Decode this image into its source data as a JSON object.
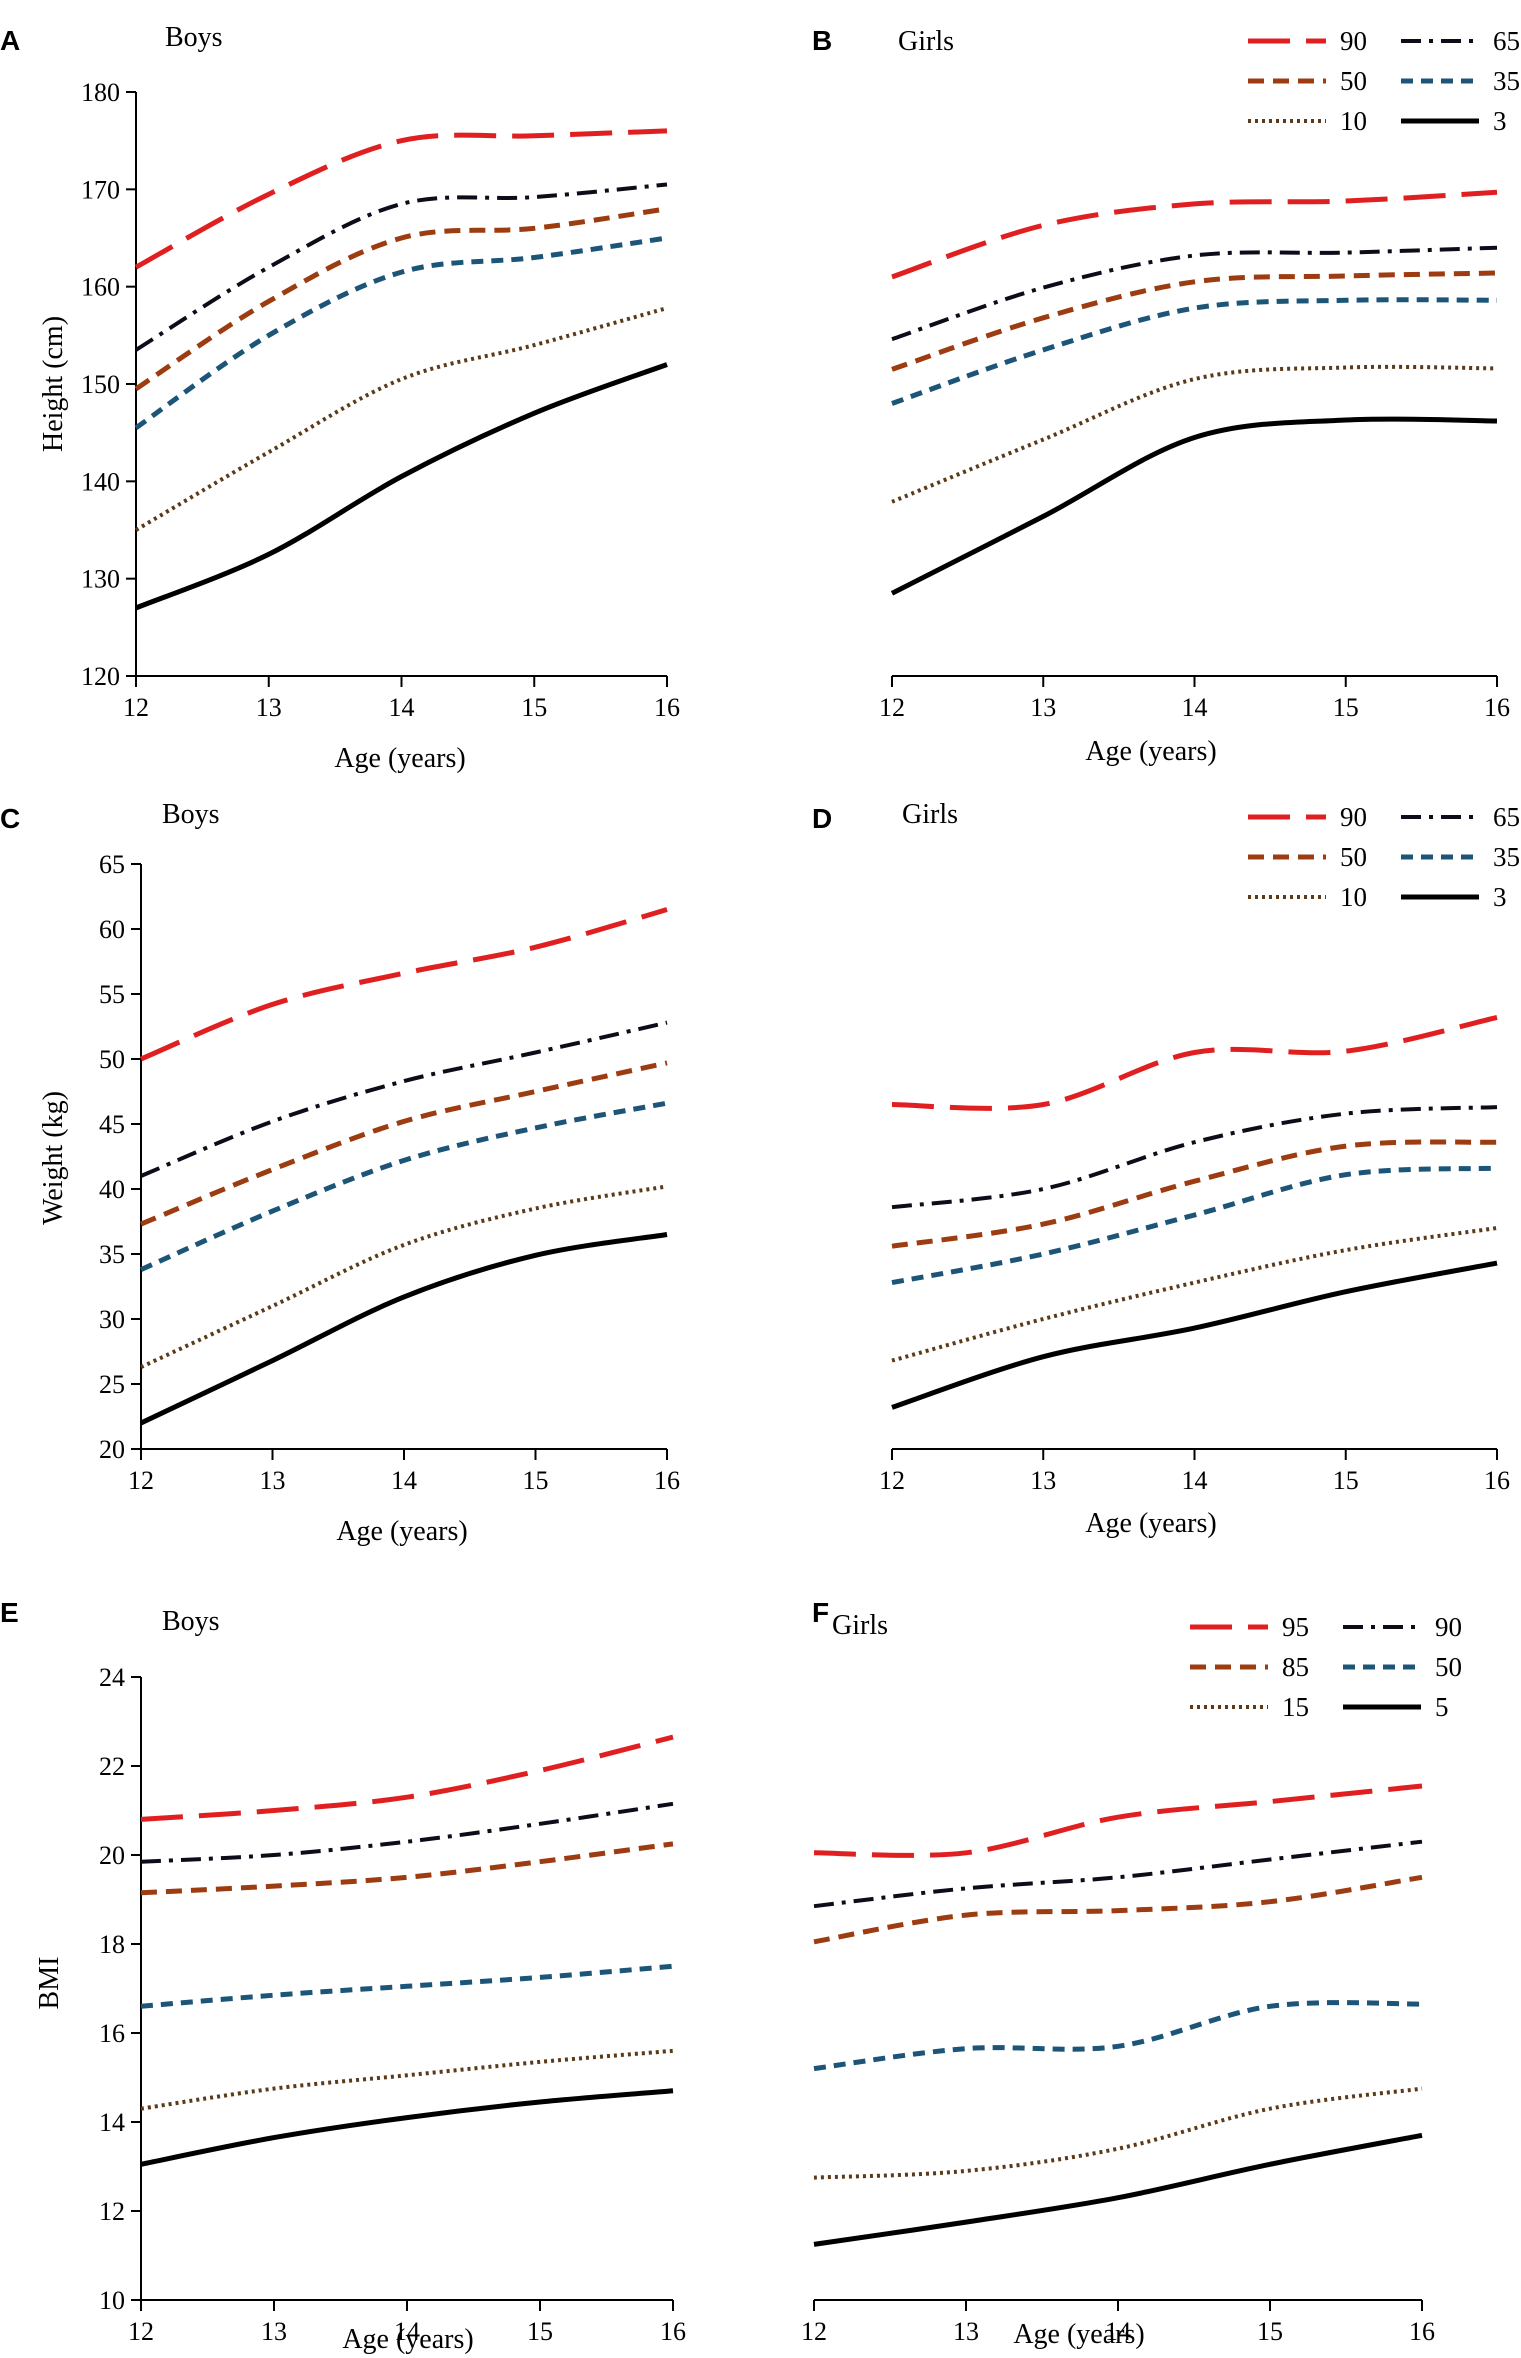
{
  "styles": {
    "90": {
      "color": "#e02020",
      "dash": "42 16",
      "width": 5
    },
    "65": {
      "color": "#0d0d1a",
      "dash": "20 8 4 8",
      "width": 4
    },
    "50": {
      "color": "#9c3c10",
      "dash": "16 9",
      "width": 5
    },
    "35": {
      "color": "#1c5578",
      "dash": "12 8",
      "width": 5
    },
    "10": {
      "color": "#5a3a18",
      "dash": "3 4",
      "width": 4
    },
    "3": {
      "color": "#000000",
      "dash": "",
      "width": 5
    },
    "95": {
      "color": "#e02020",
      "dash": "42 16",
      "width": 5
    },
    "90b": {
      "color": "#0d0d1a",
      "dash": "20 8 4 8",
      "width": 4
    },
    "85": {
      "color": "#9c3c10",
      "dash": "16 9",
      "width": 5
    },
    "50b": {
      "color": "#1c5578",
      "dash": "12 8",
      "width": 5
    },
    "15": {
      "color": "#5a3a18",
      "dash": "3 4",
      "width": 4
    },
    "5": {
      "color": "#000000",
      "dash": "",
      "width": 5
    }
  },
  "chart_data": [
    {
      "panel": "A",
      "type": "line",
      "title": "Boys",
      "xlabel": "Age (years)",
      "ylabel": "Height (cm)",
      "x": [
        12,
        13,
        14,
        15,
        16
      ],
      "xlim": [
        12,
        16
      ],
      "ylim": [
        120,
        180
      ],
      "yticks": [
        120,
        130,
        140,
        150,
        160,
        170,
        180
      ],
      "show_yaxis": true,
      "series": [
        {
          "name": "90",
          "style": "90",
          "values": [
            162,
            169.5,
            175,
            175.5,
            176
          ]
        },
        {
          "name": "65",
          "style": "65",
          "values": [
            153.5,
            162,
            168.5,
            169.2,
            170.5
          ]
        },
        {
          "name": "50",
          "style": "50",
          "values": [
            149.5,
            158.5,
            165,
            166,
            168
          ]
        },
        {
          "name": "35",
          "style": "35",
          "values": [
            145.5,
            155,
            161.5,
            163,
            165
          ]
        },
        {
          "name": "10",
          "style": "10",
          "values": [
            135,
            143,
            150.5,
            154,
            157.8
          ]
        },
        {
          "name": "3",
          "style": "3",
          "values": [
            127,
            132.5,
            140.5,
            147,
            152
          ]
        }
      ]
    },
    {
      "panel": "B",
      "type": "line",
      "title": "Girls",
      "xlabel": "Age (years)",
      "ylabel": "",
      "x": [
        12,
        13,
        14,
        15,
        16
      ],
      "xlim": [
        12,
        16
      ],
      "ylim": [
        120,
        180
      ],
      "yticks": [],
      "show_yaxis": false,
      "legend": {
        "position": "top-right",
        "rows": [
          [
            {
              "name": "90",
              "style": "90"
            },
            {
              "name": "65",
              "style": "65"
            }
          ],
          [
            {
              "name": "50",
              "style": "50"
            },
            {
              "name": "35",
              "style": "35"
            }
          ],
          [
            {
              "name": "10",
              "style": "10"
            },
            {
              "name": "3",
              "style": "3"
            }
          ]
        ]
      },
      "series": [
        {
          "name": "90",
          "style": "90",
          "values": [
            161,
            166.3,
            168.5,
            168.8,
            169.7
          ]
        },
        {
          "name": "65",
          "style": "65",
          "values": [
            154.6,
            159.9,
            163.2,
            163.5,
            164
          ]
        },
        {
          "name": "50",
          "style": "50",
          "values": [
            151.5,
            156.8,
            160.5,
            161.1,
            161.4
          ]
        },
        {
          "name": "35",
          "style": "35",
          "values": [
            148,
            153.5,
            157.8,
            158.6,
            158.6
          ]
        },
        {
          "name": "10",
          "style": "10",
          "values": [
            137.9,
            144.3,
            150.5,
            151.7,
            151.6
          ]
        },
        {
          "name": "3",
          "style": "3",
          "values": [
            128.5,
            136.4,
            144.5,
            146.3,
            146.2
          ]
        }
      ]
    },
    {
      "panel": "C",
      "type": "line",
      "title": "Boys",
      "xlabel": "Age (years)",
      "ylabel": "Weight (kg)",
      "x": [
        12,
        13,
        14,
        15,
        16
      ],
      "xlim": [
        12,
        16
      ],
      "ylim": [
        20,
        65
      ],
      "yticks": [
        20,
        25,
        30,
        35,
        40,
        45,
        50,
        55,
        60,
        65
      ],
      "show_yaxis": true,
      "series": [
        {
          "name": "90",
          "style": "90",
          "values": [
            50,
            54.2,
            56.6,
            58.6,
            61.5
          ]
        },
        {
          "name": "65",
          "style": "65",
          "values": [
            41,
            45.2,
            48.3,
            50.5,
            52.8
          ]
        },
        {
          "name": "50",
          "style": "50",
          "values": [
            37.3,
            41.5,
            45.2,
            47.5,
            49.7
          ]
        },
        {
          "name": "35",
          "style": "35",
          "values": [
            33.8,
            38.3,
            42.2,
            44.7,
            46.6
          ]
        },
        {
          "name": "10",
          "style": "10",
          "values": [
            26.3,
            31,
            35.7,
            38.5,
            40.2
          ]
        },
        {
          "name": "3",
          "style": "3",
          "values": [
            22,
            26.8,
            31.7,
            34.9,
            36.5
          ]
        }
      ]
    },
    {
      "panel": "D",
      "type": "line",
      "title": "Girls",
      "xlabel": "Age (years)",
      "ylabel": "",
      "x": [
        12,
        13,
        14,
        15,
        16
      ],
      "xlim": [
        12,
        16
      ],
      "ylim": [
        20,
        65
      ],
      "yticks": [],
      "show_yaxis": false,
      "legend": {
        "position": "top-right",
        "rows": [
          [
            {
              "name": "90",
              "style": "90"
            },
            {
              "name": "65",
              "style": "65"
            }
          ],
          [
            {
              "name": "50",
              "style": "50"
            },
            {
              "name": "35",
              "style": "35"
            }
          ],
          [
            {
              "name": "10",
              "style": "10"
            },
            {
              "name": "3",
              "style": "3"
            }
          ]
        ]
      },
      "series": [
        {
          "name": "90",
          "style": "90",
          "values": [
            46.5,
            46.5,
            50.5,
            50.6,
            53.2
          ]
        },
        {
          "name": "65",
          "style": "65",
          "values": [
            38.6,
            40,
            43.6,
            45.8,
            46.3
          ]
        },
        {
          "name": "50",
          "style": "50",
          "values": [
            35.6,
            37.3,
            40.6,
            43.3,
            43.6
          ]
        },
        {
          "name": "35",
          "style": "35",
          "values": [
            32.8,
            35,
            38,
            41.1,
            41.6
          ]
        },
        {
          "name": "10",
          "style": "10",
          "values": [
            26.8,
            30,
            32.8,
            35.3,
            37
          ]
        },
        {
          "name": "3",
          "style": "3",
          "values": [
            23.2,
            27.1,
            29.3,
            32.1,
            34.3
          ]
        }
      ]
    },
    {
      "panel": "E",
      "type": "line",
      "title": "Boys",
      "xlabel": "Age (years)",
      "ylabel": "BMI",
      "x": [
        12,
        13,
        14,
        15,
        16
      ],
      "xlim": [
        12,
        16
      ],
      "ylim": [
        10,
        24
      ],
      "yticks": [
        10,
        12,
        14,
        16,
        18,
        20,
        22,
        24
      ],
      "show_yaxis": true,
      "series": [
        {
          "name": "95",
          "style": "95",
          "values": [
            20.8,
            21,
            21.3,
            21.9,
            22.65
          ]
        },
        {
          "name": "90",
          "style": "90b",
          "values": [
            19.85,
            20,
            20.3,
            20.7,
            21.15
          ]
        },
        {
          "name": "85",
          "style": "85",
          "values": [
            19.15,
            19.3,
            19.5,
            19.85,
            20.25
          ]
        },
        {
          "name": "50",
          "style": "50b",
          "values": [
            16.6,
            16.85,
            17.05,
            17.25,
            17.5
          ]
        },
        {
          "name": "15",
          "style": "15",
          "values": [
            14.3,
            14.75,
            15.05,
            15.35,
            15.6
          ]
        },
        {
          "name": "5",
          "style": "5",
          "values": [
            13.05,
            13.65,
            14.1,
            14.45,
            14.7
          ]
        }
      ]
    },
    {
      "panel": "F",
      "type": "line",
      "title": "Girls",
      "xlabel": "Age (years)",
      "ylabel": "",
      "x": [
        12,
        13,
        14,
        15,
        16
      ],
      "xlim": [
        12,
        16
      ],
      "ylim": [
        10,
        24
      ],
      "yticks": [],
      "show_yaxis": false,
      "legend": {
        "position": "top-right",
        "rows": [
          [
            {
              "name": "95",
              "style": "95"
            },
            {
              "name": "90",
              "style": "90b"
            }
          ],
          [
            {
              "name": "85",
              "style": "85"
            },
            {
              "name": "50",
              "style": "50b"
            }
          ],
          [
            {
              "name": "15",
              "style": "15"
            },
            {
              "name": "5",
              "style": "5"
            }
          ]
        ]
      },
      "series": [
        {
          "name": "95",
          "style": "95",
          "values": [
            20.05,
            20.05,
            20.85,
            21.2,
            21.55
          ]
        },
        {
          "name": "90",
          "style": "90b",
          "values": [
            18.85,
            19.25,
            19.5,
            19.9,
            20.3
          ]
        },
        {
          "name": "85",
          "style": "85",
          "values": [
            18.05,
            18.65,
            18.75,
            18.95,
            19.5
          ]
        },
        {
          "name": "50",
          "style": "50b",
          "values": [
            15.2,
            15.65,
            15.7,
            16.6,
            16.65
          ]
        },
        {
          "name": "15",
          "style": "15",
          "values": [
            12.75,
            12.9,
            13.4,
            14.3,
            14.75
          ]
        },
        {
          "name": "5",
          "style": "5",
          "values": [
            11.25,
            11.75,
            12.3,
            13.05,
            13.7
          ]
        }
      ]
    }
  ]
}
